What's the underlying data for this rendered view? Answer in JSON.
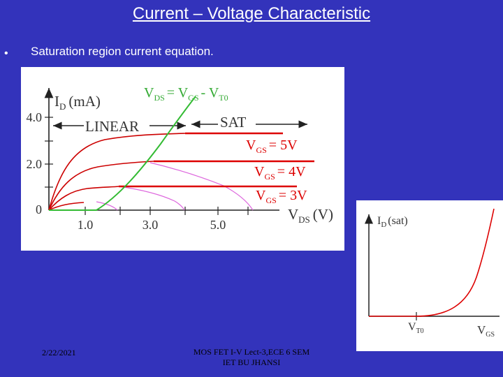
{
  "slide": {
    "title": "Current – Voltage Characteristic",
    "bullet_symbol": "•",
    "bullet_text": "Saturation region current equation."
  },
  "figure1": {
    "y_axis_label_main": "I",
    "y_axis_label_sub": "D",
    "y_axis_unit": "(mA)",
    "x_axis_label_main": "V",
    "x_axis_label_sub": "DS",
    "x_axis_unit": "(V)",
    "boundary_label": {
      "v1": "V",
      "s1": "DS",
      "eq": "= V",
      "s2": "GS",
      "minus": "- V",
      "s3": "T0"
    },
    "region_linear": "LINEAR",
    "region_sat": "SAT",
    "y_ticks": [
      "4.0",
      "2.0",
      "0"
    ],
    "x_ticks": [
      "1.0",
      "3.0",
      "5.0"
    ],
    "curve_labels": [
      {
        "v": "V",
        "sub": "GS",
        "val": "= 5V"
      },
      {
        "v": "V",
        "sub": "GS",
        "val": "= 4V"
      },
      {
        "v": "V",
        "sub": "GS",
        "val": "= 3V"
      }
    ],
    "colors": {
      "curves": "#cc0000",
      "boundary": "#33bb33",
      "extension": "#dd55dd",
      "sat_lines": "#dd0000",
      "text": "#333333"
    }
  },
  "figure2": {
    "y_axis_label_main": "I",
    "y_axis_label_sub": "D",
    "y_axis_unit": "(sat)",
    "x_label_vt_main": "V",
    "x_label_vt_sub": "T0",
    "x_label_vgs_main": "V",
    "x_label_vgs_sub": "GS",
    "curve_color": "#dd0000"
  },
  "footer": {
    "date": "2/22/2021",
    "course_line1": "MOS FET I-V Lect-3,ECE 6 SEM",
    "course_line2": "IET BU JHANSI"
  }
}
